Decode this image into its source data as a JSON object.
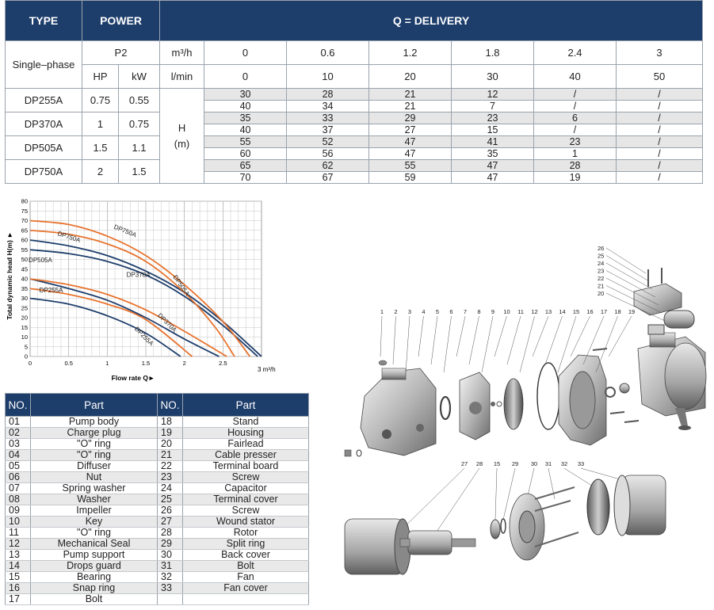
{
  "spec_table": {
    "headers": {
      "type": "TYPE",
      "power": "POWER",
      "delivery": "Q = DELIVERY"
    },
    "phase": "Single–phase",
    "p2": "P2",
    "hp": "HP",
    "kw": "kW",
    "unit_m3h": "m³/h",
    "unit_lmin": "l/min",
    "q_m3h": [
      "0",
      "0.6",
      "1.2",
      "1.8",
      "2.4",
      "3"
    ],
    "q_lmin": [
      "0",
      "10",
      "20",
      "30",
      "40",
      "50"
    ],
    "h_label": "H",
    "h_unit": "(m)",
    "models": [
      {
        "name": "DP255A",
        "hp": "0.75",
        "kw": "0.55"
      },
      {
        "name": "DP370A",
        "hp": "1",
        "kw": "0.75"
      },
      {
        "name": "DP505A",
        "hp": "1.5",
        "kw": "1.1"
      },
      {
        "name": "DP750A",
        "hp": "2",
        "kw": "1.5"
      }
    ],
    "rows": [
      [
        "30",
        "28",
        "21",
        "12",
        "/",
        "/"
      ],
      [
        "40",
        "34",
        "21",
        "7",
        "/",
        "/"
      ],
      [
        "35",
        "33",
        "29",
        "23",
        "6",
        "/"
      ],
      [
        "40",
        "37",
        "27",
        "15",
        "/",
        "/"
      ],
      [
        "55",
        "52",
        "47",
        "41",
        "23",
        "/"
      ],
      [
        "60",
        "56",
        "47",
        "35",
        "1",
        "/"
      ],
      [
        "65",
        "62",
        "55",
        "47",
        "28",
        "/"
      ],
      [
        "70",
        "67",
        "59",
        "47",
        "19",
        "/"
      ]
    ]
  },
  "chart_data": {
    "type": "line",
    "xlabel": "Flow rate Q►",
    "ylabel": "Total dynamic head H(m) ►",
    "x_unit": "3 m³/h",
    "xlim": [
      0,
      3
    ],
    "ylim": [
      0,
      80
    ],
    "x_ticks": [
      "0",
      "0.5",
      "1",
      "1.5",
      "2",
      "2.5"
    ],
    "y_ticks": [
      "0",
      "5",
      "10",
      "15",
      "20",
      "25",
      "30",
      "35",
      "40",
      "45",
      "50",
      "55",
      "60",
      "65",
      "70",
      "75",
      "80"
    ],
    "grid": true,
    "series": [
      {
        "name": "DP255A",
        "color": "#1d3d6b",
        "x": [
          0,
          0.5,
          1.0,
          1.5,
          1.95
        ],
        "y": [
          30,
          27,
          21,
          12,
          0
        ]
      },
      {
        "name": "DP255A",
        "color": "#e8732e",
        "x": [
          0,
          0.5,
          1.0,
          1.5,
          2.1
        ],
        "y": [
          35,
          32,
          27,
          19,
          0
        ]
      },
      {
        "name": "DP370A",
        "color": "#1d3d6b",
        "x": [
          0,
          0.5,
          1.0,
          1.5,
          2.0,
          2.45
        ],
        "y": [
          40,
          35,
          29,
          20,
          9,
          0
        ]
      },
      {
        "name": "DP370A",
        "color": "#e8732e",
        "x": [
          0,
          0.5,
          1.0,
          1.5,
          2.0,
          2.55
        ],
        "y": [
          40,
          37,
          32,
          24,
          13,
          0
        ]
      },
      {
        "name": "DP505A",
        "color": "#1d3d6b",
        "x": [
          0,
          0.5,
          1.0,
          1.5,
          2.0,
          2.5,
          2.95
        ],
        "y": [
          55,
          53,
          49,
          42,
          31,
          16,
          0
        ]
      },
      {
        "name": "DP505A",
        "color": "#1d3d6b",
        "x": [
          0,
          0.5,
          1.0,
          1.5,
          2.0,
          2.5,
          3.0
        ],
        "y": [
          60,
          57,
          52,
          44,
          33,
          18,
          0
        ]
      },
      {
        "name": "DP750A",
        "color": "#e8732e",
        "x": [
          0,
          0.5,
          1.0,
          1.5,
          2.0,
          2.4,
          2.65
        ],
        "y": [
          65,
          63,
          58,
          49,
          33,
          15,
          0
        ]
      },
      {
        "name": "DP750A",
        "color": "#e8732e",
        "x": [
          0,
          0.5,
          1.0,
          1.5,
          2.0,
          2.5,
          2.85
        ],
        "y": [
          70,
          68,
          62,
          52,
          37,
          18,
          0
        ]
      }
    ]
  },
  "parts_table": {
    "header_no": "NO.",
    "header_part": "Part",
    "left": [
      [
        "01",
        "Pump body"
      ],
      [
        "02",
        "Charge plug"
      ],
      [
        "03",
        "\"O\" ring"
      ],
      [
        "04",
        "\"O\" ring"
      ],
      [
        "05",
        "Diffuser"
      ],
      [
        "06",
        "Nut"
      ],
      [
        "07",
        "Spring washer"
      ],
      [
        "08",
        "Washer"
      ],
      [
        "09",
        "Impeller"
      ],
      [
        "10",
        "Key"
      ],
      [
        "11",
        "\"O\" ring"
      ],
      [
        "12",
        "Mechanical Seal"
      ],
      [
        "13",
        "Pump support"
      ],
      [
        "14",
        "Drops guard"
      ],
      [
        "15",
        "Bearing"
      ],
      [
        "16",
        "Snap ring"
      ],
      [
        "17",
        "Bolt"
      ]
    ],
    "right": [
      [
        "18",
        "Stand"
      ],
      [
        "19",
        "Housing"
      ],
      [
        "20",
        "Fairlead"
      ],
      [
        "21",
        "Cable presser"
      ],
      [
        "22",
        "Terminal board"
      ],
      [
        "23",
        "Screw"
      ],
      [
        "24",
        "Capacitor"
      ],
      [
        "25",
        "Terminal cover"
      ],
      [
        "26",
        "Screw"
      ],
      [
        "27",
        "Wound stator"
      ],
      [
        "28",
        "Rotor"
      ],
      [
        "29",
        "Split ring"
      ],
      [
        "30",
        "Back cover"
      ],
      [
        "31",
        "Bolt"
      ],
      [
        "32",
        "Fan"
      ],
      [
        "33",
        "Fan cover"
      ],
      [
        "",
        ""
      ]
    ]
  },
  "diagram": {
    "callouts_top": [
      "1",
      "2",
      "3",
      "4",
      "5",
      "6",
      "7",
      "8",
      "9",
      "10",
      "11",
      "12",
      "13",
      "14",
      "15",
      "16",
      "17",
      "18",
      "19"
    ],
    "callouts_terminal": [
      "26",
      "25",
      "24",
      "23",
      "22",
      "21",
      "20"
    ],
    "callouts_bottom": [
      "27",
      "28",
      "15",
      "29",
      "30",
      "31",
      "32",
      "33"
    ]
  }
}
